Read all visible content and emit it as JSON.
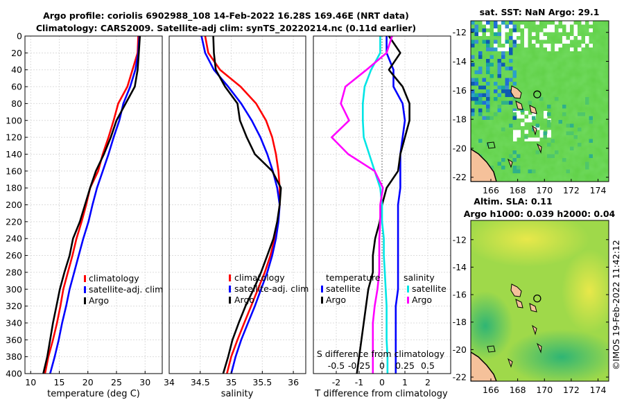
{
  "title": {
    "line1": "Argo profile: coriolis 6902988_108 14-Feb-2022 16.28S 169.46E (NRT data)",
    "line2": "Climatology: CARS2009. Satellite-adj clim: synTS_20220214.nc (0.11d earlier)"
  },
  "colors": {
    "climatology": "#ff0000",
    "satellite": "#0000ff",
    "argo": "#000000",
    "sal_satellite": "#00e5e5",
    "sal_argo": "#ff00ff",
    "land": "#f5c19a",
    "sst_bg": "#5fcf45",
    "sla_bg": "#9fd94a"
  },
  "chart_data": [
    {
      "type": "line",
      "name": "temperature",
      "xlabel": "temperature (deg C)",
      "ylabel": "",
      "xlim": [
        9,
        33
      ],
      "ylim": [
        400,
        0
      ],
      "grid": true,
      "xticks": [
        10,
        15,
        20,
        25,
        30
      ],
      "yticks": [
        0,
        20,
        40,
        60,
        80,
        100,
        120,
        140,
        160,
        180,
        200,
        220,
        240,
        260,
        280,
        300,
        320,
        340,
        360,
        380,
        400
      ],
      "depth": [
        0,
        20,
        40,
        60,
        80,
        100,
        120,
        140,
        160,
        180,
        200,
        220,
        240,
        260,
        280,
        300,
        320,
        340,
        360,
        380,
        400
      ],
      "legend": [
        "climatology",
        "satellite-adj. clim",
        "Argo"
      ],
      "series": [
        {
          "name": "climatology",
          "color": "#ff0000",
          "values": [
            28.8,
            28.7,
            27.8,
            26.9,
            25.3,
            24.5,
            23.6,
            22.6,
            21.8,
            20.4,
            19.7,
            18.9,
            18.0,
            17.3,
            16.5,
            15.7,
            15.2,
            14.6,
            13.9,
            13.1,
            12.5
          ]
        },
        {
          "name": "satellite-adj. clim",
          "color": "#0000ff",
          "values": [
            29.0,
            28.8,
            28.3,
            27.4,
            26.2,
            25.5,
            24.5,
            23.6,
            22.6,
            21.6,
            20.8,
            20.1,
            19.2,
            18.4,
            17.6,
            16.8,
            16.2,
            15.5,
            14.9,
            14.2,
            13.4
          ]
        },
        {
          "name": "Argo",
          "color": "#000000",
          "values": [
            29.1,
            28.9,
            28.7,
            28.2,
            26.6,
            25.0,
            24.0,
            22.8,
            21.4,
            20.4,
            19.5,
            18.6,
            17.4,
            16.8,
            15.9,
            15.1,
            14.5,
            13.9,
            13.4,
            12.9,
            12.2
          ]
        }
      ]
    },
    {
      "type": "line",
      "name": "salinity",
      "xlabel": "salinity",
      "xlim": [
        34,
        36.2
      ],
      "ylim": [
        400,
        0
      ],
      "grid": true,
      "xticks": [
        34,
        34.5,
        35,
        35.5,
        36
      ],
      "xticklabels": [
        "34",
        "34.5",
        "35",
        "35.5",
        "36"
      ],
      "depth": [
        0,
        20,
        40,
        60,
        80,
        100,
        120,
        140,
        160,
        180,
        200,
        220,
        240,
        260,
        280,
        300,
        320,
        340,
        360,
        380,
        400
      ],
      "legend": [
        "climatology",
        "satellite-adj. clim",
        "Argo"
      ],
      "series": [
        {
          "name": "climatology",
          "color": "#ff0000",
          "values": [
            34.58,
            34.63,
            34.82,
            35.15,
            35.4,
            35.56,
            35.66,
            35.72,
            35.76,
            35.78,
            35.78,
            35.75,
            35.7,
            35.63,
            35.54,
            35.43,
            35.32,
            35.21,
            35.1,
            35.0,
            34.93
          ]
        },
        {
          "name": "satellite-adj. clim",
          "color": "#0000ff",
          "values": [
            34.52,
            34.58,
            34.72,
            34.95,
            35.16,
            35.33,
            35.47,
            35.58,
            35.67,
            35.74,
            35.78,
            35.76,
            35.72,
            35.66,
            35.58,
            35.48,
            35.38,
            35.27,
            35.16,
            35.07,
            35.0
          ]
        },
        {
          "name": "Argo",
          "color": "#000000",
          "values": [
            34.71,
            34.72,
            34.75,
            34.9,
            35.1,
            35.14,
            35.25,
            35.38,
            35.66,
            35.8,
            35.78,
            35.74,
            35.68,
            35.58,
            35.48,
            35.36,
            35.23,
            35.12,
            35.02,
            34.95,
            34.87
          ]
        }
      ]
    },
    {
      "type": "line",
      "name": "differences",
      "xlabel": "T difference from climatology",
      "top_axis_label": "S difference from climatology",
      "xlim": [
        -3,
        3
      ],
      "ylim": [
        400,
        0
      ],
      "grid": true,
      "xticks": [
        -2,
        -1,
        0,
        1,
        2
      ],
      "top_xticks": [
        "-0.5",
        "-0.25",
        "0",
        "0.25",
        "0.5"
      ],
      "depth": [
        0,
        20,
        40,
        60,
        80,
        100,
        120,
        140,
        160,
        180,
        200,
        220,
        240,
        260,
        280,
        300,
        320,
        340,
        360,
        380,
        400
      ],
      "legend_temperature_title": "temperature",
      "legend_salinity_title": "salinity",
      "legend": [
        "satellite",
        "Argo",
        "satellite",
        "Argo"
      ],
      "series": [
        {
          "name": "temperature satellite",
          "color": "#0000ff",
          "values": [
            0.2,
            0.2,
            0.5,
            0.5,
            0.9,
            1.0,
            0.9,
            0.8,
            0.8,
            0.8,
            0.7,
            0.7,
            0.7,
            0.7,
            0.7,
            0.7,
            0.6,
            0.6,
            0.6,
            0.6,
            0.6
          ]
        },
        {
          "name": "temperature Argo",
          "color": "#000000",
          "values": [
            0.3,
            0.8,
            0.3,
            0.9,
            1.2,
            1.2,
            1.0,
            0.8,
            0.7,
            0.2,
            0.0,
            -0.1,
            -0.3,
            -0.4,
            -0.4,
            -0.6,
            -0.7,
            -0.8,
            -0.9,
            -1.0,
            -1.1
          ]
        },
        {
          "name": "salinity satellite",
          "color": "#00e5e5",
          "values": [
            -0.02,
            -0.02,
            -0.12,
            -0.19,
            -0.21,
            -0.21,
            -0.2,
            -0.14,
            -0.08,
            -0.02,
            0.0,
            0.0,
            0.02,
            0.02,
            0.03,
            0.04,
            0.05,
            0.05,
            0.05,
            0.06,
            0.06
          ]
        },
        {
          "name": "salinity Argo",
          "color": "#ff00ff",
          "values": [
            0.11,
            0.05,
            -0.17,
            -0.4,
            -0.45,
            -0.36,
            -0.55,
            -0.37,
            -0.08,
            0.01,
            -0.02,
            -0.02,
            -0.03,
            -0.03,
            -0.03,
            -0.05,
            -0.08,
            -0.1,
            -0.1,
            -0.1,
            -0.1
          ]
        }
      ]
    },
    {
      "type": "heatmap",
      "name": "sst_map",
      "title": "sat. SST: NaN Argo: 29.1",
      "xlim": [
        164.5,
        174.8
      ],
      "ylim": [
        -22.3,
        -11.2
      ],
      "xticks": [
        166,
        168,
        170,
        172,
        174
      ],
      "yticks": [
        -12,
        -14,
        -16,
        -18,
        -20,
        -22
      ],
      "argo_marker": {
        "lon": 169.46,
        "lat": -16.28
      }
    },
    {
      "type": "heatmap",
      "name": "sla_map",
      "title_line1": "Altim. SLA: 0.11",
      "title_line2": "Argo h1000: 0.039 h2000: 0.04",
      "xlim": [
        164.5,
        174.8
      ],
      "ylim": [
        -22.3,
        -10.6
      ],
      "xticks": [
        166,
        168,
        170,
        172,
        174
      ],
      "yticks": [
        -12,
        -14,
        -16,
        -18,
        -20,
        -22
      ],
      "argo_marker": {
        "lon": 169.46,
        "lat": -16.28
      }
    }
  ],
  "watermark": "©IMOS 19-Feb-2022 11:42:12"
}
